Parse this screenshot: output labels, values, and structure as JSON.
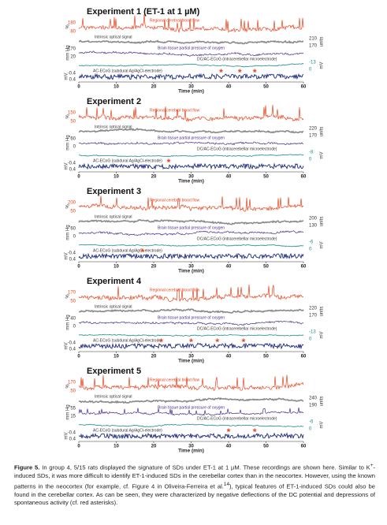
{
  "figure": {
    "trace_labels": [
      "Regional cerebral blood flow",
      "Intrinsic optical signal",
      "Brain tissue partial pressure of oxygen",
      "DC/AC-ECoG (intracerebellar microelectrode)",
      "AC-ECoG (subdural Ag/AgCl-electrode)"
    ],
    "units": [
      "%",
      "units",
      "mm Hg",
      "mV",
      "mV"
    ],
    "x_label": "Time (min)",
    "xticks": [
      0,
      10,
      20,
      30,
      40,
      50,
      60
    ],
    "asterisk": "*",
    "panels": [
      {
        "title": "Experiment 1 (ET-1 at 1 µM)",
        "rcbf": [
          "180",
          "80"
        ],
        "ios": [
          "210",
          "170"
        ],
        "po2": [
          "170",
          "20"
        ],
        "dc": [
          "-13",
          "0"
        ],
        "ac": [
          "-0.4",
          "0.4"
        ],
        "asterisks_at_min": [
          38,
          43,
          47
        ]
      },
      {
        "title": "Experiment 2",
        "rcbf": [
          "150",
          "50"
        ],
        "ios": [
          "220",
          "170"
        ],
        "po2": [
          "60",
          "0"
        ],
        "dc": [
          "-8",
          "0"
        ],
        "ac": [
          "-0.4",
          "0.4"
        ],
        "asterisks_at_min": [
          24
        ]
      },
      {
        "title": "Experiment 3",
        "rcbf": [
          "200",
          "50"
        ],
        "ios": [
          "200",
          "130"
        ],
        "po2": [
          "60",
          "0"
        ],
        "dc": [
          "-6",
          "0"
        ],
        "ac": [
          "-0.4",
          "0.4"
        ],
        "asterisks_at_min": [
          17
        ]
      },
      {
        "title": "Experiment 4",
        "rcbf": [
          "170",
          "50"
        ],
        "ios": [
          "220",
          "170"
        ],
        "po2": [
          "40",
          "0"
        ],
        "dc": [
          "-13",
          "0"
        ],
        "ac": [
          "-0.4",
          "0.4"
        ],
        "asterisks_at_min": [
          22,
          30,
          37,
          44
        ]
      },
      {
        "title": "Experiment 5",
        "rcbf": [
          "170",
          "50"
        ],
        "ios": [
          "240",
          "190"
        ],
        "po2": [
          "55",
          "15"
        ],
        "dc": [
          "-6",
          "0"
        ],
        "ac": [
          "-0.4",
          "0.4"
        ],
        "asterisks_at_min": [
          40,
          47
        ]
      }
    ]
  },
  "caption": {
    "label": "Figure 5.",
    "text_1": " In group 4, 5/15 rats displayed the signature of SDs under ET-1 at 1 µM. These recordings are shown here. Similar to K",
    "sup_1": "+",
    "text_2": "-induced SDs, it was more difficult to identify ET-1-induced SDs in the cerebellar cortex than in the neocortex. However, using the known patterns in the neocortex (for example, cf. Figure 4 in Oliveira-Ferreira et al.",
    "sup_2": "14",
    "text_3": "), typical features of ET-1-induced SDs could also be found in the cerebellar cortex. As can be seen, they were characterized by negative deflections of the DC potential and depressions of spontaneous activity (cf. red asterisks)."
  }
}
